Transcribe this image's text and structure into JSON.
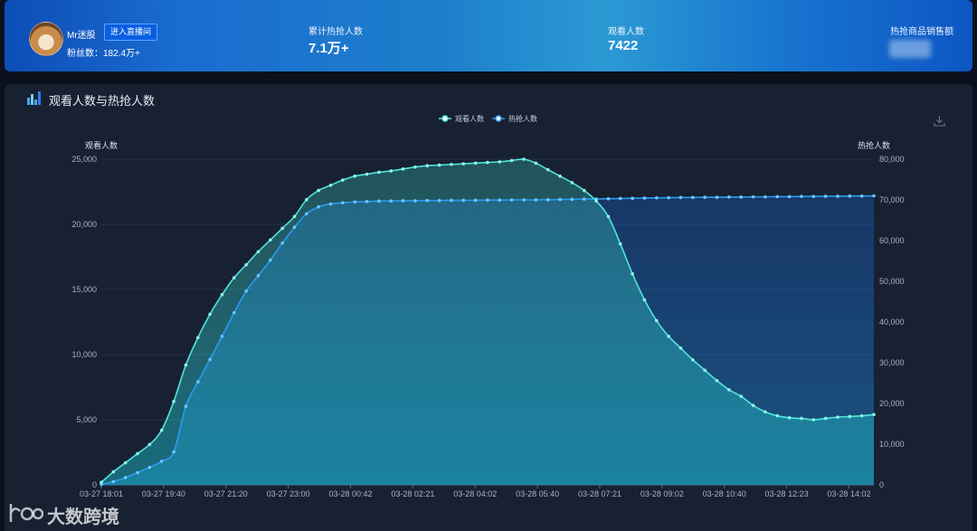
{
  "header": {
    "username": "Mr迷股",
    "enter_button": "进入直播间",
    "fans": "粉丝数：182.4万+",
    "stats": [
      {
        "label": "累计热抢人数",
        "value": "7.1万+"
      },
      {
        "label": "观看人数",
        "value": "7422"
      },
      {
        "label": "热抢商品销售额",
        "value": ""
      }
    ]
  },
  "panel": {
    "title": "观看人数与热抢人数"
  },
  "colors": {
    "watch": "#4ee6d9",
    "hot": "#2b9cf0",
    "background": "#172132"
  },
  "watermark": {
    "text": "大数跨境"
  },
  "chart_data": {
    "type": "area",
    "legend": [
      "观看人数",
      "热抢人数"
    ],
    "legend_position": "top-center",
    "x_tick_labels": [
      "03-27 18:01",
      "03-27 19:40",
      "03-27 21:20",
      "03-27 23:00",
      "03-28 00:42",
      "03-28 02:21",
      "03-28 04:02",
      "03-28 05:40",
      "03-28 07:21",
      "03-28 09:02",
      "03-28 10:40",
      "03-28 12:23",
      "03-28 14:02"
    ],
    "y_left": {
      "name": "观看人数",
      "range": [
        0,
        25000
      ],
      "ticks": [
        "0",
        "5,000",
        "10,000",
        "15,000",
        "20,000",
        "25,000"
      ]
    },
    "y_right": {
      "name": "热抢人数",
      "range": [
        0,
        80000
      ],
      "ticks": [
        "0",
        "10,000",
        "20,000",
        "30,000",
        "40,000",
        "50,000",
        "60,000",
        "70,000",
        "80,000"
      ]
    },
    "grid": true,
    "series": [
      {
        "name": "观看人数",
        "axis": "left",
        "values": [
          200,
          1000,
          1700,
          2400,
          3100,
          4200,
          6400,
          9200,
          11300,
          13100,
          14600,
          15900,
          16900,
          17900,
          18800,
          19700,
          20600,
          21900,
          22600,
          23000,
          23400,
          23700,
          23850,
          24000,
          24100,
          24250,
          24400,
          24500,
          24550,
          24600,
          24650,
          24700,
          24750,
          24800,
          24900,
          25000,
          24700,
          24200,
          23700,
          23200,
          22600,
          21800,
          20600,
          18500,
          16200,
          14200,
          12600,
          11400,
          10500,
          9600,
          8800,
          8000,
          7300,
          6800,
          6100,
          5600,
          5300,
          5150,
          5100,
          5000,
          5100,
          5200,
          5250,
          5300,
          5400
        ]
      },
      {
        "name": "热抢人数",
        "axis": "right",
        "values": [
          100,
          800,
          1800,
          3000,
          4300,
          5800,
          8100,
          19300,
          25300,
          30800,
          36500,
          42300,
          47600,
          51400,
          55200,
          59400,
          63300,
          66600,
          68300,
          69000,
          69300,
          69500,
          69600,
          69700,
          69750,
          69800,
          69800,
          69850,
          69850,
          69900,
          69900,
          69900,
          69950,
          69950,
          70000,
          70000,
          70000,
          70050,
          70100,
          70150,
          70200,
          70250,
          70300,
          70350,
          70400,
          70450,
          70500,
          70550,
          70600,
          70600,
          70650,
          70650,
          70700,
          70700,
          70750,
          70750,
          70800,
          70800,
          70850,
          70850,
          70900,
          70900,
          70950,
          70950,
          71000
        ]
      }
    ]
  }
}
